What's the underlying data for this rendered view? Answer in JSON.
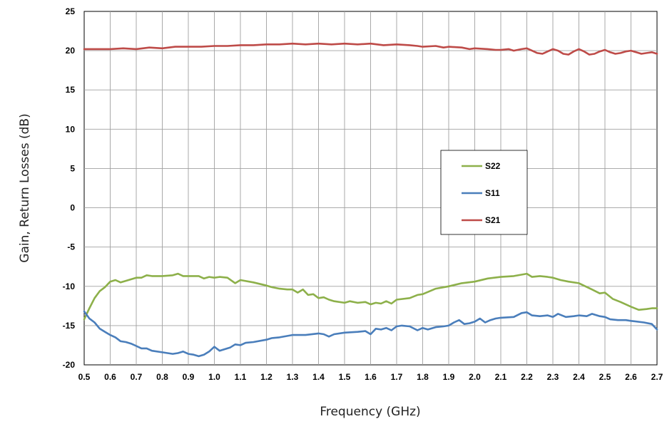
{
  "chart_data": {
    "type": "line",
    "title": "",
    "xlabel": "Frequency (GHz)",
    "ylabel": "Gain, Return Losses (dB)",
    "xlim": [
      0.5,
      2.7
    ],
    "ylim": [
      -20,
      25
    ],
    "x_ticks": [
      "0.5",
      "0.6",
      "0.7",
      "0.8",
      "0.9",
      "1.0",
      "1.1",
      "1.2",
      "1.3",
      "1.4",
      "1.5",
      "1.6",
      "1.7",
      "1.8",
      "1.9",
      "2.0",
      "2.1",
      "2.2",
      "2.3",
      "2.4",
      "2.5",
      "2.6",
      "2.7"
    ],
    "y_ticks": [
      "25",
      "20",
      "15",
      "10",
      "5",
      "0",
      "-5",
      "-10",
      "-15",
      "-20"
    ],
    "grid": true,
    "legend_position": "center-right",
    "series": [
      {
        "name": "S22",
        "color": "#8DB04A",
        "x": [
          0.5,
          0.52,
          0.54,
          0.56,
          0.58,
          0.6,
          0.62,
          0.64,
          0.66,
          0.7,
          0.72,
          0.74,
          0.76,
          0.8,
          0.84,
          0.86,
          0.88,
          0.9,
          0.94,
          0.96,
          0.98,
          1.0,
          1.02,
          1.05,
          1.08,
          1.1,
          1.15,
          1.2,
          1.22,
          1.25,
          1.28,
          1.3,
          1.32,
          1.34,
          1.36,
          1.38,
          1.4,
          1.42,
          1.44,
          1.46,
          1.5,
          1.52,
          1.55,
          1.58,
          1.6,
          1.62,
          1.64,
          1.66,
          1.68,
          1.7,
          1.75,
          1.78,
          1.8,
          1.85,
          1.9,
          1.95,
          2.0,
          2.05,
          2.1,
          2.15,
          2.2,
          2.22,
          2.25,
          2.28,
          2.3,
          2.33,
          2.36,
          2.4,
          2.45,
          2.48,
          2.5,
          2.53,
          2.56,
          2.6,
          2.63,
          2.66,
          2.68,
          2.7
        ],
        "y": [
          -14.2,
          -12.8,
          -11.5,
          -10.6,
          -10.1,
          -9.4,
          -9.2,
          -9.5,
          -9.3,
          -8.9,
          -8.9,
          -8.6,
          -8.7,
          -8.7,
          -8.6,
          -8.4,
          -8.7,
          -8.7,
          -8.7,
          -9.0,
          -8.8,
          -8.9,
          -8.8,
          -8.9,
          -9.6,
          -9.2,
          -9.5,
          -9.9,
          -10.1,
          -10.3,
          -10.4,
          -10.4,
          -10.8,
          -10.4,
          -11.1,
          -11.0,
          -11.5,
          -11.4,
          -11.7,
          -11.9,
          -12.1,
          -11.9,
          -12.1,
          -12.0,
          -12.3,
          -12.1,
          -12.2,
          -11.9,
          -12.2,
          -11.7,
          -11.5,
          -11.1,
          -11.0,
          -10.3,
          -10.0,
          -9.6,
          -9.4,
          -9.0,
          -8.8,
          -8.7,
          -8.4,
          -8.8,
          -8.7,
          -8.8,
          -8.9,
          -9.2,
          -9.4,
          -9.6,
          -10.4,
          -10.9,
          -10.8,
          -11.6,
          -12.0,
          -12.6,
          -13.0,
          -12.9,
          -12.8,
          -12.8
        ]
      },
      {
        "name": "S11",
        "color": "#4A7EBB",
        "x": [
          0.5,
          0.52,
          0.54,
          0.56,
          0.58,
          0.6,
          0.62,
          0.64,
          0.66,
          0.68,
          0.7,
          0.72,
          0.74,
          0.76,
          0.8,
          0.84,
          0.86,
          0.88,
          0.9,
          0.92,
          0.94,
          0.96,
          0.98,
          1.0,
          1.02,
          1.04,
          1.06,
          1.08,
          1.1,
          1.12,
          1.15,
          1.2,
          1.22,
          1.25,
          1.3,
          1.35,
          1.4,
          1.42,
          1.44,
          1.46,
          1.5,
          1.55,
          1.58,
          1.6,
          1.62,
          1.64,
          1.66,
          1.68,
          1.7,
          1.72,
          1.75,
          1.78,
          1.8,
          1.82,
          1.85,
          1.88,
          1.9,
          1.92,
          1.94,
          1.96,
          1.98,
          2.0,
          2.02,
          2.04,
          2.06,
          2.08,
          2.1,
          2.15,
          2.18,
          2.2,
          2.22,
          2.25,
          2.28,
          2.3,
          2.32,
          2.35,
          2.38,
          2.4,
          2.43,
          2.45,
          2.48,
          2.5,
          2.52,
          2.55,
          2.58,
          2.6,
          2.65,
          2.68,
          2.7
        ],
        "y": [
          -13.2,
          -14.1,
          -14.6,
          -15.4,
          -15.8,
          -16.2,
          -16.5,
          -17.0,
          -17.1,
          -17.3,
          -17.6,
          -17.9,
          -17.9,
          -18.2,
          -18.4,
          -18.6,
          -18.5,
          -18.3,
          -18.6,
          -18.7,
          -18.9,
          -18.7,
          -18.3,
          -17.7,
          -18.2,
          -18.0,
          -17.8,
          -17.4,
          -17.5,
          -17.2,
          -17.1,
          -16.8,
          -16.6,
          -16.5,
          -16.2,
          -16.2,
          -16.0,
          -16.1,
          -16.4,
          -16.1,
          -15.9,
          -15.8,
          -15.7,
          -16.1,
          -15.4,
          -15.5,
          -15.3,
          -15.6,
          -15.1,
          -15.0,
          -15.1,
          -15.6,
          -15.3,
          -15.5,
          -15.2,
          -15.1,
          -15.0,
          -14.6,
          -14.3,
          -14.8,
          -14.7,
          -14.5,
          -14.1,
          -14.6,
          -14.3,
          -14.1,
          -14.0,
          -13.9,
          -13.4,
          -13.3,
          -13.7,
          -13.8,
          -13.7,
          -13.9,
          -13.5,
          -13.9,
          -13.8,
          -13.7,
          -13.8,
          -13.5,
          -13.8,
          -13.9,
          -14.2,
          -14.3,
          -14.3,
          -14.4,
          -14.6,
          -14.8,
          -15.5
        ]
      },
      {
        "name": "S21",
        "color": "#BE4B48",
        "x": [
          0.5,
          0.55,
          0.6,
          0.65,
          0.7,
          0.75,
          0.8,
          0.85,
          0.9,
          0.95,
          1.0,
          1.05,
          1.1,
          1.15,
          1.2,
          1.25,
          1.3,
          1.35,
          1.4,
          1.45,
          1.5,
          1.55,
          1.6,
          1.65,
          1.7,
          1.75,
          1.78,
          1.8,
          1.85,
          1.88,
          1.9,
          1.95,
          1.98,
          2.0,
          2.05,
          2.08,
          2.1,
          2.13,
          2.15,
          2.18,
          2.2,
          2.22,
          2.24,
          2.26,
          2.28,
          2.3,
          2.32,
          2.34,
          2.36,
          2.38,
          2.4,
          2.42,
          2.44,
          2.46,
          2.48,
          2.5,
          2.52,
          2.54,
          2.56,
          2.58,
          2.6,
          2.62,
          2.64,
          2.66,
          2.68,
          2.7
        ],
        "y": [
          20.2,
          20.2,
          20.2,
          20.3,
          20.2,
          20.4,
          20.3,
          20.5,
          20.5,
          20.5,
          20.6,
          20.6,
          20.7,
          20.7,
          20.8,
          20.8,
          20.9,
          20.8,
          20.9,
          20.8,
          20.9,
          20.8,
          20.9,
          20.7,
          20.8,
          20.7,
          20.6,
          20.5,
          20.6,
          20.4,
          20.5,
          20.4,
          20.2,
          20.3,
          20.2,
          20.1,
          20.1,
          20.2,
          20.0,
          20.2,
          20.3,
          20.0,
          19.7,
          19.6,
          19.9,
          20.2,
          20.0,
          19.6,
          19.5,
          19.9,
          20.2,
          19.9,
          19.5,
          19.6,
          19.9,
          20.1,
          19.8,
          19.6,
          19.7,
          19.9,
          20.0,
          19.8,
          19.6,
          19.7,
          19.8,
          19.6
        ]
      }
    ]
  }
}
